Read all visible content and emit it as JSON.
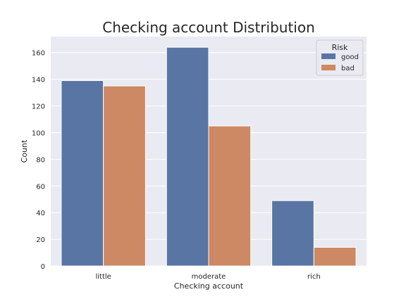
{
  "chart_data": {
    "type": "bar",
    "title": "Checking account Distribution",
    "xlabel": "Checking account",
    "ylabel": "Count",
    "categories": [
      "little",
      "moderate",
      "rich"
    ],
    "series": [
      {
        "name": "good",
        "color": "#5875a4",
        "values": [
          139,
          164,
          49
        ]
      },
      {
        "name": "bad",
        "color": "#cc8963",
        "values": [
          135,
          105,
          14
        ]
      }
    ],
    "ylim": [
      0,
      172
    ],
    "yticks": [
      0,
      20,
      40,
      60,
      80,
      100,
      120,
      140,
      160
    ],
    "grid": true,
    "legend": {
      "title": "Risk",
      "placement": "top-right"
    },
    "colors": {
      "plot_bg": "#eaeaf2",
      "grid": "#ffffff"
    }
  }
}
